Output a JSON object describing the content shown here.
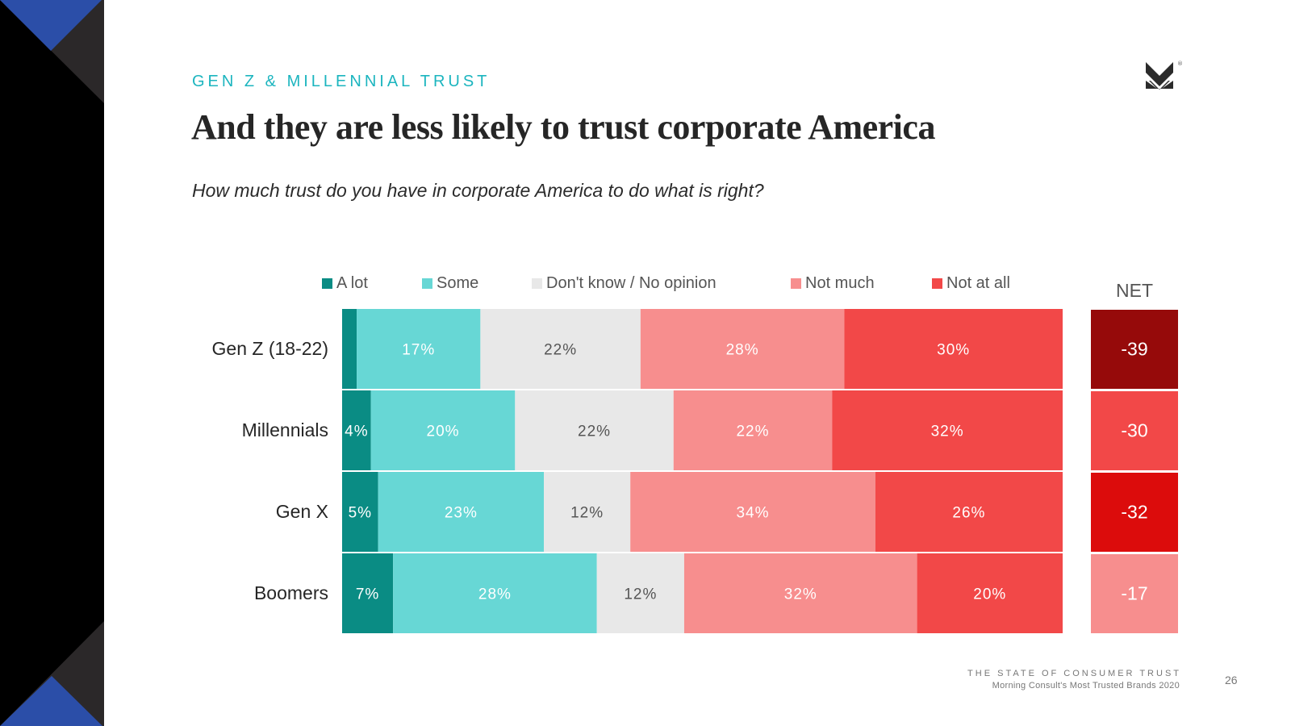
{
  "header": {
    "eyebrow": "GEN Z & MILLENNIAL TRUST",
    "title": "And they are less likely to trust corporate America",
    "question": "How much trust do you have in corporate America to do what is right?"
  },
  "logo": {
    "icon": "morning-consult-m-logo",
    "registered": "®"
  },
  "chart_data": {
    "type": "bar",
    "orientation": "horizontal",
    "stacked": true,
    "title": "How much trust do you have in corporate America to do what is right?",
    "xlabel": "",
    "ylabel": "",
    "categories": [
      "Gen Z (18-22)",
      "Millennials",
      "Gen X",
      "Boomers"
    ],
    "legend_position": "top",
    "series": [
      {
        "name": "A lot",
        "color": "#0a8c84",
        "label_color": "#ffffff",
        "values": [
          2,
          4,
          5,
          7
        ],
        "show_labels": [
          false,
          true,
          true,
          true
        ]
      },
      {
        "name": "Some",
        "color": "#67d7d5",
        "label_color": "#ffffff",
        "values": [
          17,
          20,
          23,
          28
        ],
        "show_labels": [
          true,
          true,
          true,
          true
        ]
      },
      {
        "name": "Don't know / No opinion",
        "color": "#e8e8e8",
        "label_color": "#555555",
        "values": [
          22,
          22,
          12,
          12
        ],
        "show_labels": [
          true,
          true,
          true,
          true
        ]
      },
      {
        "name": "Not much",
        "color": "#f78e8e",
        "label_color": "#ffffff",
        "values": [
          28,
          22,
          34,
          32
        ],
        "show_labels": [
          true,
          true,
          true,
          true
        ]
      },
      {
        "name": "Not at all",
        "color": "#f24848",
        "label_color": "#ffffff",
        "values": [
          30,
          32,
          26,
          20
        ],
        "show_labels": [
          true,
          true,
          true,
          true
        ]
      }
    ],
    "value_suffix": "%",
    "net": {
      "header": "NET",
      "values": [
        -39,
        -30,
        -32,
        -17
      ],
      "colors": [
        "#960a0a",
        "#f24848",
        "#dc0c0c",
        "#f78e8e"
      ]
    },
    "grid": false
  },
  "footer": {
    "line1": "THE STATE OF CONSUMER TRUST",
    "line2": "Morning Consult's Most Trusted Brands 2020",
    "page_number": "26"
  },
  "decor": {
    "blue": "#2b4ea8",
    "dark": "#2b2829",
    "black": "#000000"
  }
}
